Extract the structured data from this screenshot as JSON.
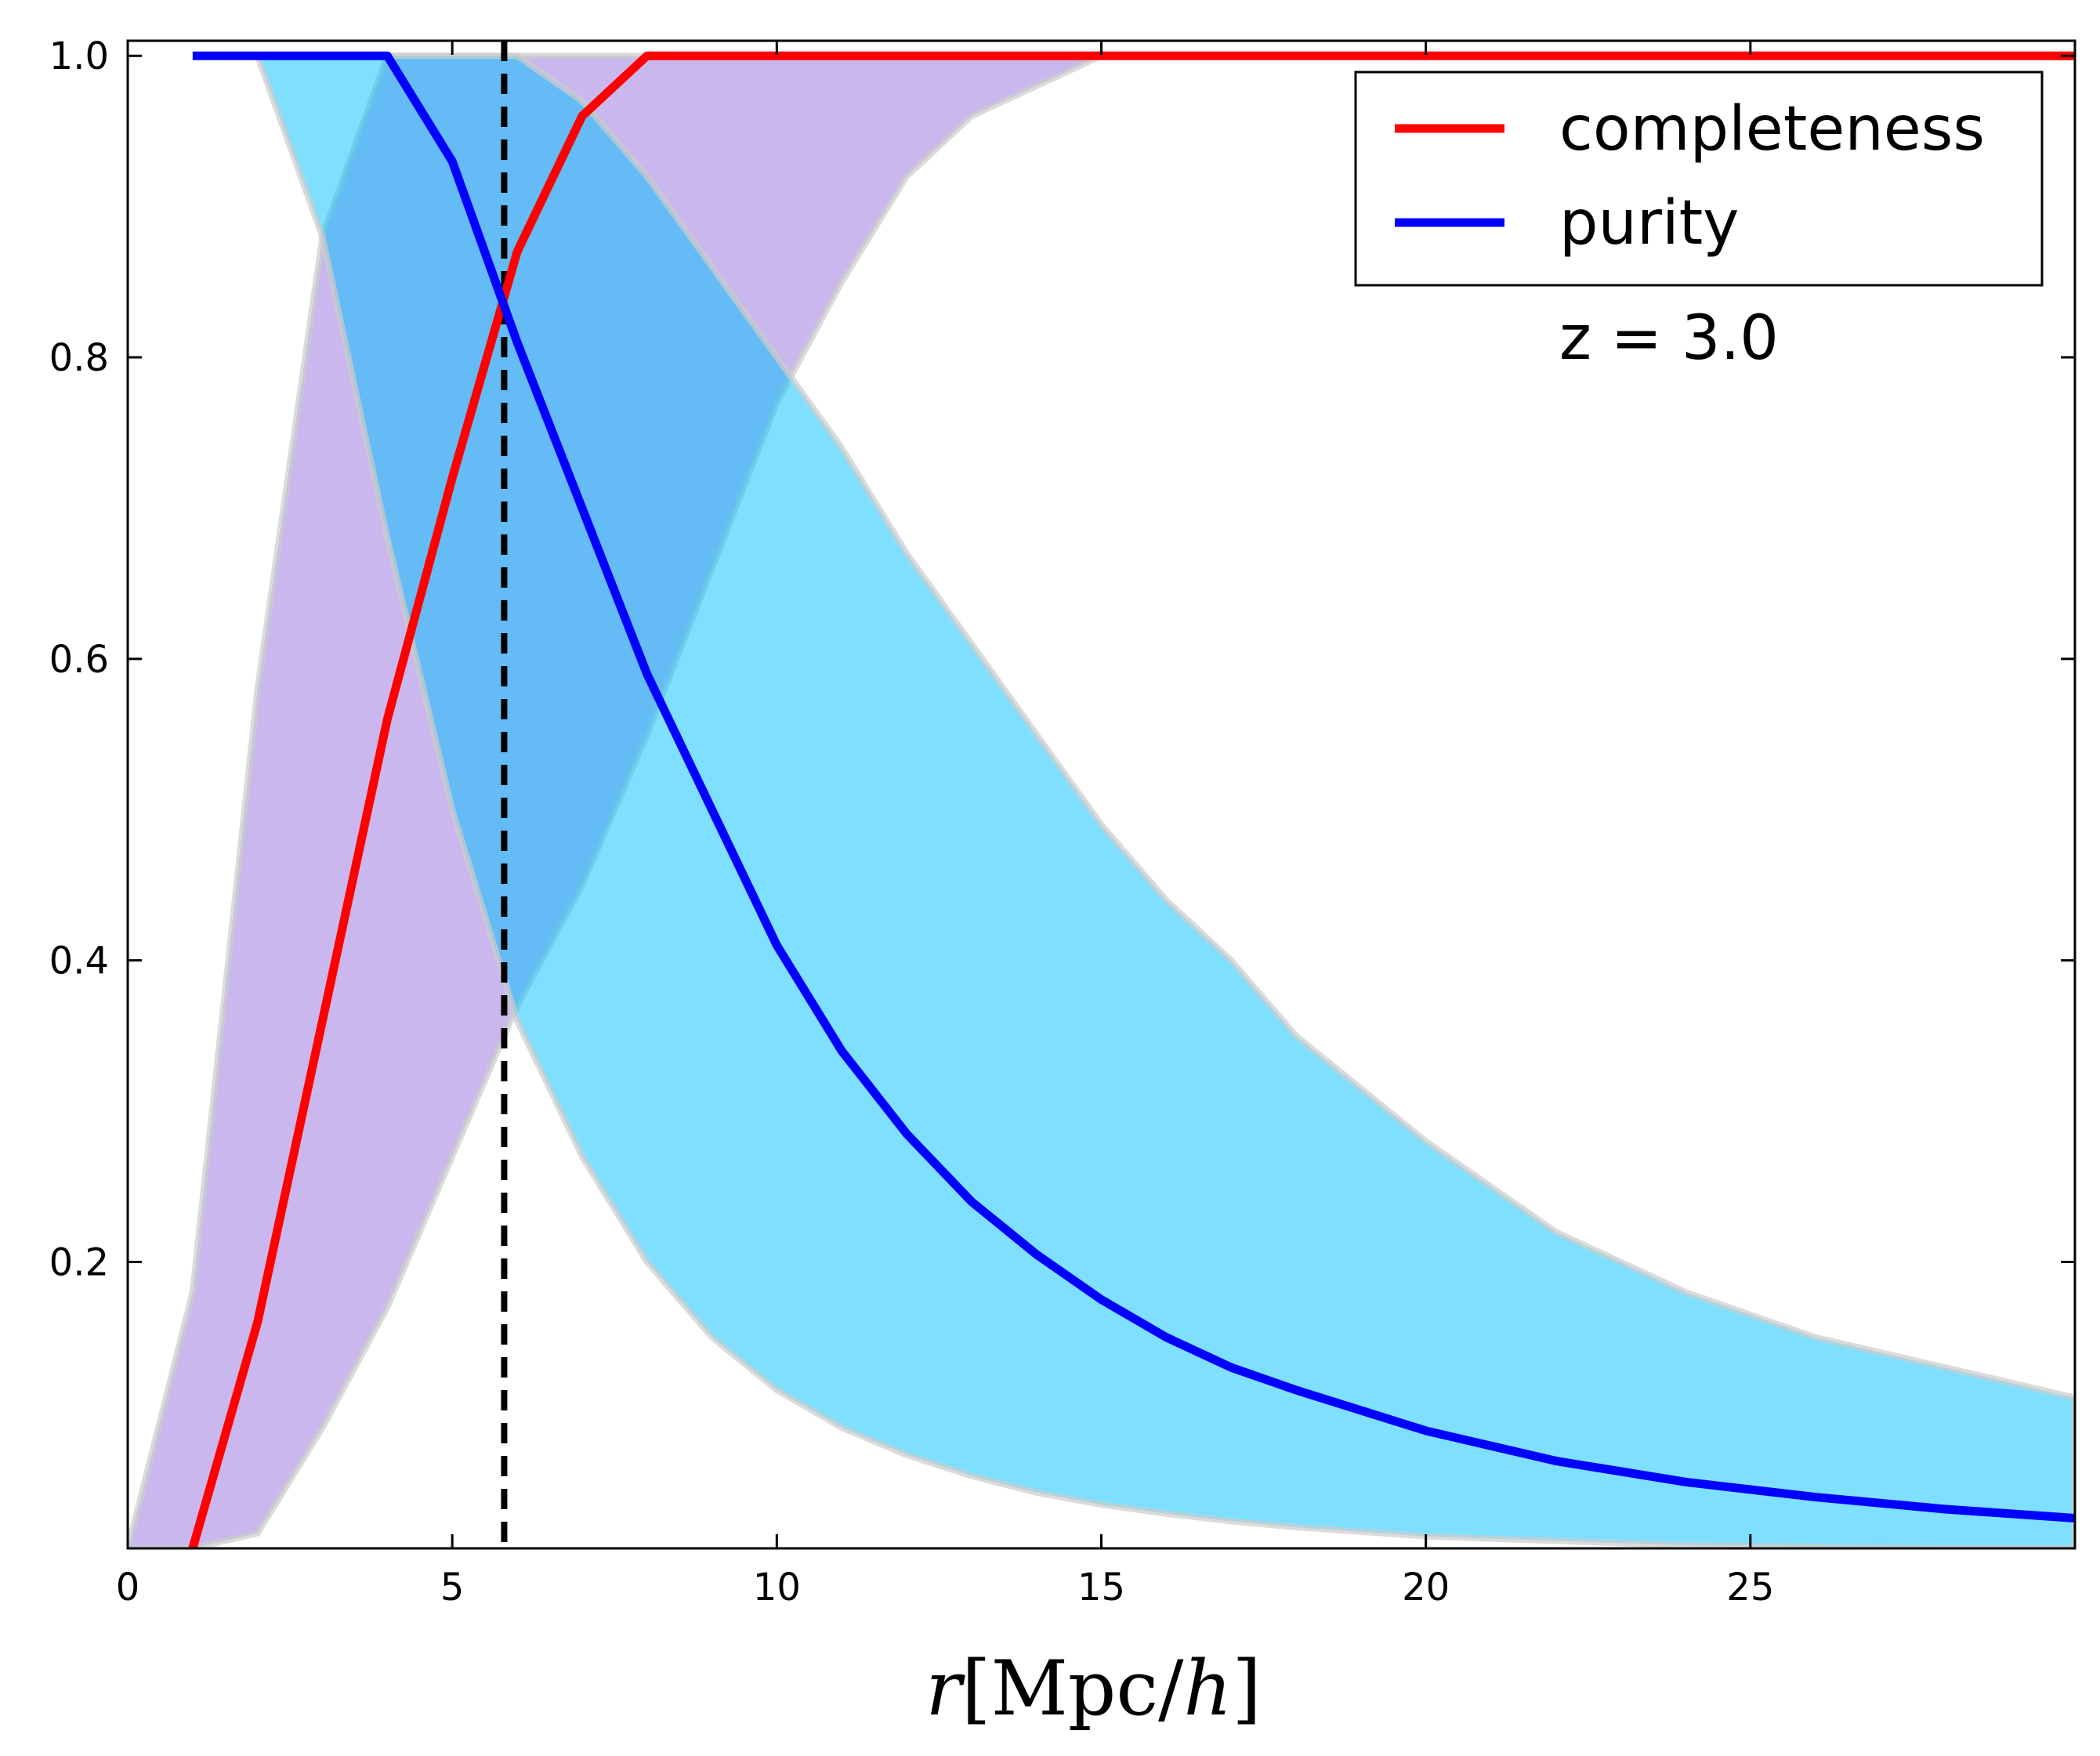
{
  "chart_data": {
    "type": "line",
    "title": "",
    "xlabel": "r[Mpc/h]",
    "ylabel": "",
    "xlim": [
      0,
      30
    ],
    "ylim": [
      0.01,
      1.01
    ],
    "x_ticks": [
      0,
      5,
      10,
      15,
      20,
      25
    ],
    "y_ticks": [
      0.2,
      0.4,
      0.6,
      0.8,
      1.0
    ],
    "x_tick_labels": [
      "0",
      "5",
      "10",
      "15",
      "20",
      "25"
    ],
    "y_tick_labels": [
      "0.2",
      "0.4",
      "0.6",
      "0.8",
      "1.0"
    ],
    "annotation": "z = 3.0",
    "vline_x": 5.8,
    "legend_position": "top-right",
    "series": [
      {
        "name": "completeness",
        "color": "#ff0000",
        "x": [
          1,
          2,
          3,
          4,
          5,
          6,
          7,
          8,
          9,
          10,
          12,
          15,
          20,
          25,
          30
        ],
        "values": [
          0.01,
          0.16,
          0.36,
          0.56,
          0.72,
          0.87,
          0.96,
          1.0,
          1.0,
          1.0,
          1.0,
          1.0,
          1.0,
          1.0,
          1.0
        ]
      },
      {
        "name": "purity",
        "color": "#0000ff",
        "x": [
          1,
          2,
          3,
          4,
          5,
          6,
          7,
          8,
          9,
          10,
          11,
          12,
          13,
          14,
          15,
          16,
          17,
          18,
          20,
          22,
          24,
          26,
          28,
          30
        ],
        "values": [
          1.0,
          1.0,
          1.0,
          1.0,
          0.93,
          0.81,
          0.7,
          0.59,
          0.5,
          0.41,
          0.34,
          0.285,
          0.24,
          0.205,
          0.175,
          0.15,
          0.13,
          0.115,
          0.088,
          0.068,
          0.054,
          0.044,
          0.036,
          0.03
        ]
      }
    ],
    "bands": [
      {
        "name": "completeness-band",
        "color": "#9370db",
        "x": [
          0,
          1,
          2,
          3,
          4,
          5,
          6,
          7,
          8,
          9,
          10,
          11,
          12,
          13,
          14,
          15,
          20,
          30
        ],
        "lower": [
          0.01,
          0.01,
          0.02,
          0.09,
          0.17,
          0.27,
          0.37,
          0.45,
          0.55,
          0.66,
          0.77,
          0.85,
          0.92,
          0.96,
          0.98,
          1.0,
          1.0,
          1.0
        ],
        "upper": [
          0.01,
          0.18,
          0.58,
          0.88,
          1.0,
          1.0,
          1.0,
          1.0,
          1.0,
          1.0,
          1.0,
          1.0,
          1.0,
          1.0,
          1.0,
          1.0,
          1.0,
          1.0
        ]
      },
      {
        "name": "purity-band",
        "color": "#00bfff",
        "x": [
          2,
          3,
          4,
          5,
          6,
          7,
          8,
          9,
          10,
          11,
          12,
          13,
          14,
          15,
          16,
          17,
          18,
          20,
          22,
          24,
          26,
          28,
          30
        ],
        "lower": [
          1.0,
          0.88,
          0.68,
          0.5,
          0.36,
          0.27,
          0.2,
          0.15,
          0.115,
          0.09,
          0.072,
          0.058,
          0.047,
          0.039,
          0.033,
          0.028,
          0.024,
          0.018,
          0.015,
          0.012,
          0.011,
          0.01,
          0.01
        ],
        "upper": [
          1.0,
          1.0,
          1.0,
          1.0,
          1.0,
          0.97,
          0.92,
          0.86,
          0.8,
          0.74,
          0.67,
          0.61,
          0.55,
          0.49,
          0.44,
          0.4,
          0.35,
          0.28,
          0.22,
          0.18,
          0.15,
          0.13,
          0.11
        ]
      }
    ]
  }
}
